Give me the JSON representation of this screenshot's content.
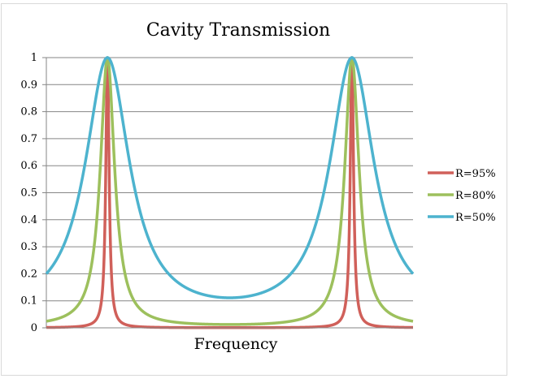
{
  "chart_data": {
    "type": "line",
    "title": "Cavity Transmission",
    "xlabel": "Frequency",
    "ylabel": "",
    "ylim": [
      0,
      1
    ],
    "xlim": [
      0,
      6
    ],
    "yticks": [
      "0",
      "0.1",
      "0.2",
      "0.3",
      "0.4",
      "0.5",
      "0.6",
      "0.7",
      "0.8",
      "0.9",
      "1"
    ],
    "grid": true,
    "legend_position": "right",
    "peaks_x": [
      1,
      5
    ],
    "series": [
      {
        "name": "R=95%",
        "color": "#d0605a",
        "reflectivity": 0.95,
        "min": 0.0007,
        "max": 1
      },
      {
        "name": "R=80%",
        "color": "#9dc05d",
        "reflectivity": 0.8,
        "min": 0.0123,
        "max": 1
      },
      {
        "name": "R=50%",
        "color": "#4db3ce",
        "reflectivity": 0.5,
        "min": 0.111,
        "max": 1
      }
    ]
  }
}
